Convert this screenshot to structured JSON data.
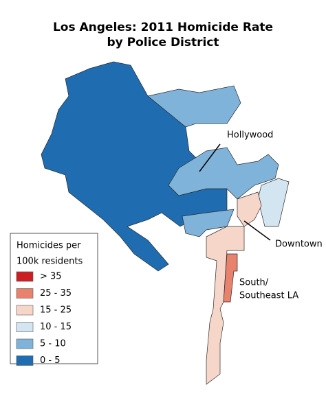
{
  "title": {
    "line1": "Los Angeles: 2011 Homicide Rate",
    "line2": "by Police District"
  },
  "legend": {
    "title": {
      "line1": "Homicides per",
      "line2": "100k residents"
    },
    "items": [
      {
        "label": "> 35",
        "color": "#cb1f25"
      },
      {
        "label": "25 - 35",
        "color": "#e8826c"
      },
      {
        "label": "15 - 25",
        "color": "#f7d6ca"
      },
      {
        "label": "10 - 15",
        "color": "#d4e5f2"
      },
      {
        "label": "5 - 10",
        "color": "#7fb3d9"
      },
      {
        "label": "0 - 5",
        "color": "#1f6cb1"
      }
    ]
  },
  "annotations": {
    "hollywood": "Hollywood",
    "downtown": "Downtown",
    "south": {
      "line1": "South/",
      "line2": "Southeast LA"
    }
  }
}
